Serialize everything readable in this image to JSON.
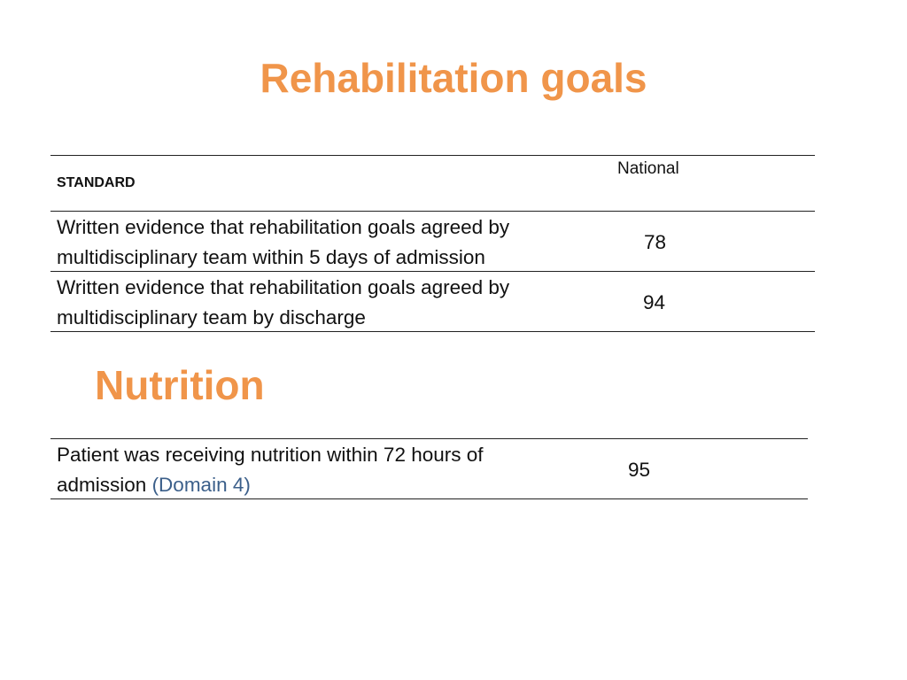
{
  "title": "Rehabilitation goals",
  "rehab_table": {
    "header_standard": "STANDARD",
    "header_national": "National",
    "rows": [
      {
        "line1": "Written evidence that rehabilitation goals agreed by",
        "line2": "multidisciplinary team within 5 days of admission",
        "value": "78"
      },
      {
        "line1": "Written evidence that rehabilitation goals agreed by",
        "line2": "multidisciplinary team by discharge",
        "value": "94"
      }
    ]
  },
  "nutrition_heading": "Nutrition",
  "nutrition_table": {
    "rows": [
      {
        "line1": "Patient was receiving nutrition within 72 hours of",
        "line2_prefix": "admission",
        "line2_link": "(Domain 4)",
        "value": "95"
      }
    ]
  },
  "colors": {
    "heading_orange": "#f0954a",
    "domain_link_blue": "#3b5f8a",
    "rule_line": "#222222"
  }
}
